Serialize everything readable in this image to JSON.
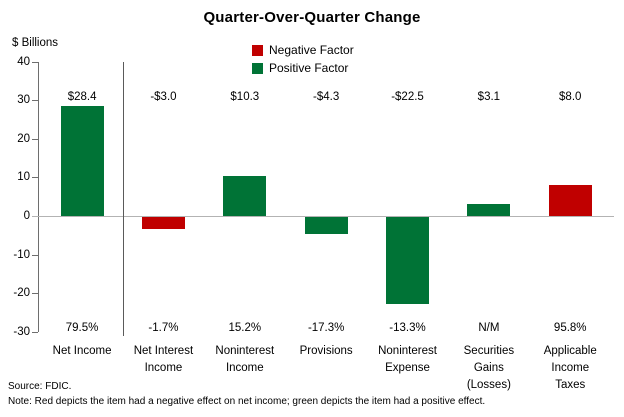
{
  "header": {
    "title": "Quarter-Over-Quarter Change"
  },
  "y_axis": {
    "label": "$ Billions",
    "ticks": [
      "40",
      "30",
      "20",
      "10",
      "0",
      "-10",
      "-20",
      "-30"
    ]
  },
  "legend": {
    "items": [
      {
        "label": "Negative Factor",
        "color": "#c00000"
      },
      {
        "label": "Positive Factor",
        "color": "#007336"
      }
    ]
  },
  "footer": {
    "source": "Source: FDIC.",
    "note": "Note: Red depicts the item had a negative effect on net income; green depicts the item had a positive effect."
  },
  "chart_data": {
    "type": "bar",
    "title": "Quarter-Over-Quarter Change",
    "ylabel": "$ Billions",
    "ylim": [
      -30,
      40
    ],
    "ytick_interval": 10,
    "grid": false,
    "legend_position": "top-center",
    "legend": [
      {
        "name": "Negative Factor",
        "color": "#c00000"
      },
      {
        "name": "Positive Factor",
        "color": "#007336"
      }
    ],
    "categories": [
      "Net Income",
      "Net Interest Income",
      "Noninterest Income",
      "Provisions",
      "Noninterest Expense",
      "Securities Gains (Losses)",
      "Applicable Income Taxes"
    ],
    "category_label_lines": [
      [
        "Net Income"
      ],
      [
        "Net Interest",
        "Income"
      ],
      [
        "Noninterest",
        "Income"
      ],
      [
        "Provisions"
      ],
      [
        "Noninterest",
        "Expense"
      ],
      [
        "Securities",
        "Gains",
        "(Losses)"
      ],
      [
        "Applicable",
        "Income",
        "Taxes"
      ]
    ],
    "values": [
      28.4,
      -3.0,
      10.3,
      -4.3,
      -22.5,
      3.1,
      8.0
    ],
    "value_labels": [
      "$28.4",
      "-$3.0",
      "$10.3",
      "-$4.3",
      "-$22.5",
      "$3.1",
      "$8.0"
    ],
    "percent_labels": [
      "79.5%",
      "-1.7%",
      "15.2%",
      "-17.3%",
      "-13.3%",
      "N/M",
      "95.8%"
    ],
    "bar_colors": [
      "#007336",
      "#c00000",
      "#007336",
      "#007336",
      "#007336",
      "#007336",
      "#c00000"
    ],
    "separator_after_category_index": 0,
    "colors": {
      "positive_factor": "#007336",
      "negative_factor": "#c00000",
      "axis": "#6e6e6e",
      "zero_line": "#b3b3b3",
      "separator": "#5a5a5a"
    }
  }
}
